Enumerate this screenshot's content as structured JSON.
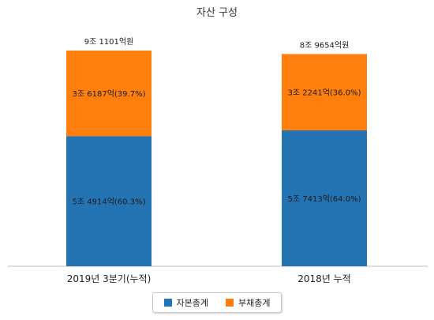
{
  "chart_data": {
    "type": "bar",
    "stacked": true,
    "title": "자산 구성",
    "categories": [
      "2019년 3분기(누적)",
      "2018년 누적"
    ],
    "series": [
      {
        "name": "자본총계",
        "color": "#2474b4",
        "values": [
          54914,
          57413
        ],
        "labels": [
          "5조 4914억(60.3%)",
          "5조 7413억(64.0%)"
        ]
      },
      {
        "name": "부채총계",
        "color": "#ff7f0e",
        "values": [
          36187,
          32241
        ],
        "labels": [
          "3조 6187억(39.7%)",
          "3조 2241억(36.0%)"
        ]
      }
    ],
    "totals": [
      "9조 1101억원",
      "8조 9654억원"
    ],
    "legend_position": "bottom",
    "grid": false
  }
}
